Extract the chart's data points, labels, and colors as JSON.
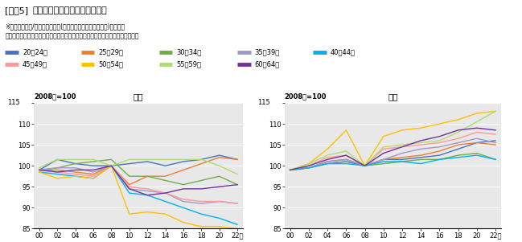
{
  "title_prefix": "[図表5]",
  "title_main": "年齢階級別実質賃金水準の推移",
  "subtitle1": "※所定内給与額/消費者物価指数(持家の帰属家賃を除く総合)を指数化",
  "subtitle2": "資料：厚生労働省「賃金構造基本統計調査」、総務省統計局「消費者物価指数」",
  "age_groups": [
    "20～24歳",
    "25～29歳",
    "30～34歳",
    "35～39歳",
    "40～44歳",
    "45～49歳",
    "50～54歳",
    "55～59歳",
    "60～64歳"
  ],
  "colors": [
    "#4472C4",
    "#ED7D31",
    "#70AD47",
    "#9E9AC8",
    "#00B0F0",
    "#FF9999",
    "#FFC000",
    "#AEDC6E",
    "#7030A0"
  ],
  "years": [
    2000,
    2002,
    2004,
    2006,
    2008,
    2010,
    2012,
    2014,
    2016,
    2018,
    2020,
    2022
  ],
  "male_data": {
    "20～24歳": [
      99.0,
      101.5,
      100.5,
      100.0,
      100.0,
      100.5,
      101.0,
      100.0,
      101.0,
      101.5,
      102.5,
      101.5
    ],
    "25～29歳": [
      99.0,
      99.0,
      98.5,
      98.0,
      100.0,
      95.5,
      97.5,
      97.5,
      99.0,
      100.5,
      102.0,
      101.5
    ],
    "30～34歳": [
      99.0,
      99.5,
      100.5,
      101.0,
      101.5,
      97.5,
      97.5,
      96.5,
      95.5,
      96.5,
      97.5,
      95.5
    ],
    "35～39歳": [
      99.0,
      99.5,
      99.5,
      98.5,
      100.0,
      94.5,
      94.0,
      93.5,
      91.5,
      91.0,
      91.5,
      91.0
    ],
    "40～44歳": [
      98.5,
      98.0,
      97.5,
      97.0,
      100.0,
      93.5,
      93.0,
      91.5,
      90.0,
      88.5,
      87.5,
      86.0
    ],
    "45～49歳": [
      99.0,
      98.5,
      98.0,
      97.5,
      100.0,
      95.0,
      94.5,
      93.5,
      92.0,
      91.5,
      91.5,
      91.0
    ],
    "50～54歳": [
      98.5,
      97.0,
      97.5,
      97.0,
      100.0,
      88.5,
      89.0,
      88.5,
      86.5,
      85.5,
      85.5,
      85.0
    ],
    "55～59歳": [
      99.5,
      101.5,
      101.5,
      101.5,
      100.0,
      101.5,
      101.5,
      101.5,
      101.5,
      101.5,
      100.0,
      98.0
    ],
    "60～64歳": [
      99.0,
      98.5,
      99.0,
      99.0,
      100.0,
      94.5,
      93.0,
      93.5,
      94.5,
      94.5,
      95.0,
      95.5
    ]
  },
  "female_data": {
    "20～24歳": [
      99.0,
      99.5,
      100.5,
      101.0,
      100.0,
      101.5,
      101.5,
      102.0,
      102.5,
      104.0,
      105.5,
      106.0
    ],
    "25～29歳": [
      99.0,
      99.5,
      101.0,
      101.5,
      100.0,
      101.5,
      102.0,
      102.5,
      103.5,
      105.0,
      105.5,
      105.0
    ],
    "30～34歳": [
      99.0,
      99.5,
      101.0,
      101.5,
      100.0,
      100.5,
      101.0,
      101.5,
      101.5,
      102.5,
      103.0,
      101.5
    ],
    "35～39歳": [
      99.0,
      99.5,
      101.0,
      101.5,
      100.0,
      101.5,
      103.0,
      104.0,
      104.5,
      105.5,
      106.5,
      105.5
    ],
    "40～44歳": [
      99.0,
      99.5,
      100.5,
      100.5,
      100.0,
      101.0,
      101.0,
      100.5,
      101.5,
      102.0,
      102.5,
      101.5
    ],
    "45～49歳": [
      99.0,
      100.0,
      102.0,
      102.5,
      100.0,
      104.0,
      104.5,
      105.0,
      105.5,
      106.5,
      108.0,
      107.5
    ],
    "50～54歳": [
      99.0,
      100.5,
      104.0,
      108.5,
      100.0,
      107.0,
      108.5,
      109.0,
      110.0,
      111.0,
      112.5,
      113.0
    ],
    "55～59歳": [
      99.0,
      100.5,
      102.5,
      103.5,
      100.0,
      104.5,
      105.0,
      105.5,
      106.0,
      108.0,
      110.5,
      113.0
    ],
    "60～64歳": [
      99.0,
      100.0,
      101.5,
      102.5,
      100.0,
      103.0,
      104.5,
      106.0,
      107.0,
      108.5,
      109.0,
      108.5
    ]
  },
  "ylim": [
    85,
    115
  ],
  "yticks": [
    85,
    90,
    95,
    100,
    105,
    110,
    115
  ],
  "xtick_labels": [
    "00",
    "02",
    "04",
    "06",
    "08",
    "10",
    "12",
    "14",
    "16",
    "18",
    "20",
    "22年"
  ],
  "bg_color": "#E8E8E8",
  "left_label": "男性",
  "right_label": "女性",
  "index_label": "2008年=100"
}
